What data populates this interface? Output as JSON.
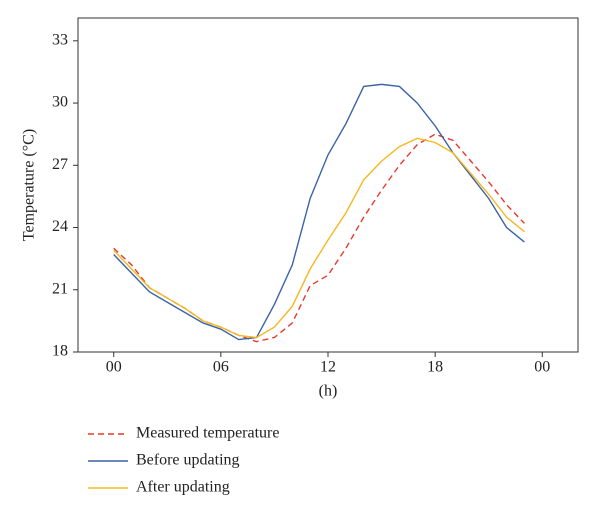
{
  "chart_data": {
    "type": "line",
    "ylabel": "Temperature (°C)",
    "xlabel": "(h)",
    "x": [
      0,
      1,
      2,
      3,
      4,
      5,
      6,
      7,
      8,
      9,
      10,
      11,
      12,
      13,
      14,
      15,
      16,
      17,
      18,
      19,
      20,
      21,
      22,
      23
    ],
    "series": [
      {
        "name": "Measured temperature",
        "color": "#e8392a",
        "style": "dashed",
        "values": [
          23.0,
          22.2,
          21.1,
          20.6,
          20.1,
          19.5,
          19.2,
          18.8,
          18.5,
          18.7,
          19.4,
          21.2,
          21.7,
          23.0,
          24.5,
          25.8,
          27.0,
          28.0,
          28.5,
          28.2,
          27.2,
          26.2,
          25.1,
          24.2
        ]
      },
      {
        "name": "Before updating",
        "color": "#3a64a4",
        "style": "solid",
        "values": [
          22.7,
          21.8,
          20.9,
          20.4,
          19.9,
          19.4,
          19.1,
          18.6,
          18.7,
          20.3,
          22.2,
          25.4,
          27.5,
          29.0,
          30.8,
          30.9,
          30.8,
          30.0,
          28.9,
          27.6,
          26.5,
          25.4,
          24.0,
          23.3
        ]
      },
      {
        "name": "After updating",
        "color": "#f5b820",
        "style": "solid",
        "values": [
          22.9,
          22.0,
          21.1,
          20.6,
          20.1,
          19.5,
          19.2,
          18.8,
          18.7,
          19.2,
          20.2,
          22.0,
          23.4,
          24.7,
          26.3,
          27.2,
          27.9,
          28.3,
          28.1,
          27.6,
          26.6,
          25.6,
          24.5,
          23.8
        ]
      }
    ],
    "xlim": [
      -2,
      26
    ],
    "xticks": [
      {
        "value": 0,
        "label": "00"
      },
      {
        "value": 6,
        "label": "06"
      },
      12,
      18,
      {
        "value": 24,
        "label": "00"
      }
    ],
    "ylim": [
      18,
      34.1
    ],
    "yticks": [
      18,
      21,
      24,
      27,
      30,
      33
    ],
    "grid": false,
    "legend": "bottom"
  }
}
